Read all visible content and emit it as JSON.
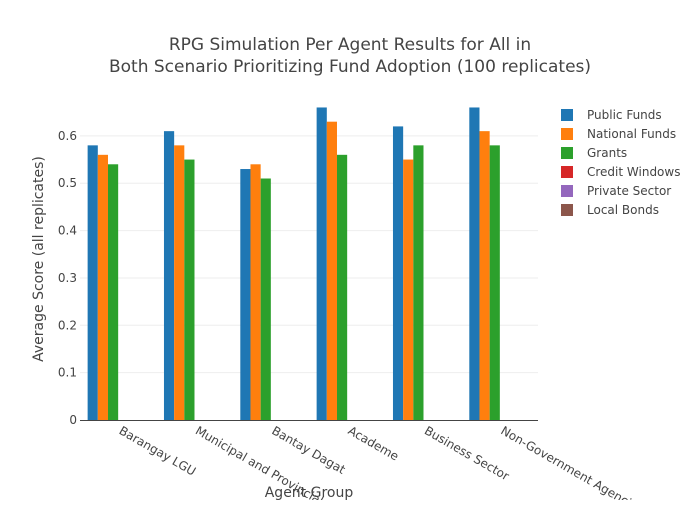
{
  "chart_data": {
    "type": "bar",
    "title_lines": [
      "RPG Simulation Per Agent Results for All in",
      "Both Scenario Prioritizing Fund Adoption (100 replicates)"
    ],
    "xlabel": "Agent Group",
    "ylabel": "Average Score (all replicates)",
    "ylim": [
      0,
      0.68
    ],
    "yticks": [
      0,
      0.1,
      0.2,
      0.3,
      0.4,
      0.5,
      0.6
    ],
    "ytick_labels": [
      "0",
      "0.1",
      "0.2",
      "0.3",
      "0.4",
      "0.5",
      "0.6"
    ],
    "grid": true,
    "legend_position": "right",
    "categories": [
      "Barangay LGU",
      "Municipal and Provincial LGU",
      "Bantay Dagat",
      "Academe",
      "Business Sector",
      "Non-Government Agencies"
    ],
    "series": [
      {
        "name": "Public Funds",
        "color": "#1f77b4",
        "values": [
          0.58,
          0.61,
          0.53,
          0.66,
          0.62,
          0.66
        ]
      },
      {
        "name": "National Funds",
        "color": "#ff7f0e",
        "values": [
          0.56,
          0.58,
          0.54,
          0.63,
          0.55,
          0.61
        ]
      },
      {
        "name": "Grants",
        "color": "#2ca02c",
        "values": [
          0.54,
          0.55,
          0.51,
          0.56,
          0.58,
          0.58
        ]
      },
      {
        "name": "Credit Windows",
        "color": "#d62728",
        "values": [
          0,
          0,
          0,
          0,
          0,
          0
        ]
      },
      {
        "name": "Private Sector",
        "color": "#9467bd",
        "values": [
          0,
          0,
          0,
          0,
          0,
          0
        ]
      },
      {
        "name": "Local Bonds",
        "color": "#8c564b",
        "values": [
          0,
          0,
          0,
          0,
          0,
          0
        ]
      }
    ]
  }
}
